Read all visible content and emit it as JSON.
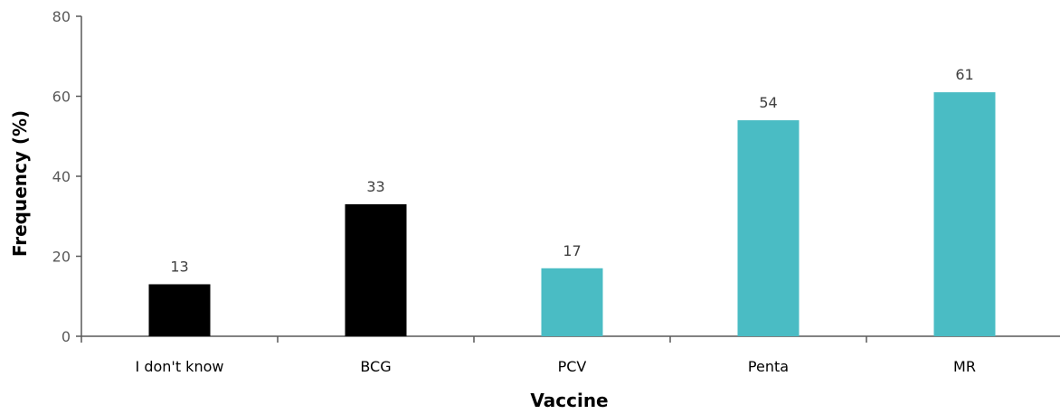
{
  "chart_data": {
    "type": "bar",
    "title": "",
    "xlabel": "Vaccine",
    "ylabel": "Frequency (%)",
    "ylim": [
      0,
      80
    ],
    "yticks": [
      0,
      20,
      40,
      60,
      80
    ],
    "categories": [
      "I don't know",
      "BCG",
      "PCV",
      "Penta",
      "MR"
    ],
    "values": [
      13,
      33,
      17,
      54,
      61
    ],
    "bar_colors": [
      "#000000",
      "#000000",
      "#4ABCC4",
      "#4ABCC4",
      "#4ABCC4"
    ],
    "data_labels": [
      "13",
      "33",
      "17",
      "54",
      "61"
    ],
    "grid": false,
    "legend": "none"
  }
}
